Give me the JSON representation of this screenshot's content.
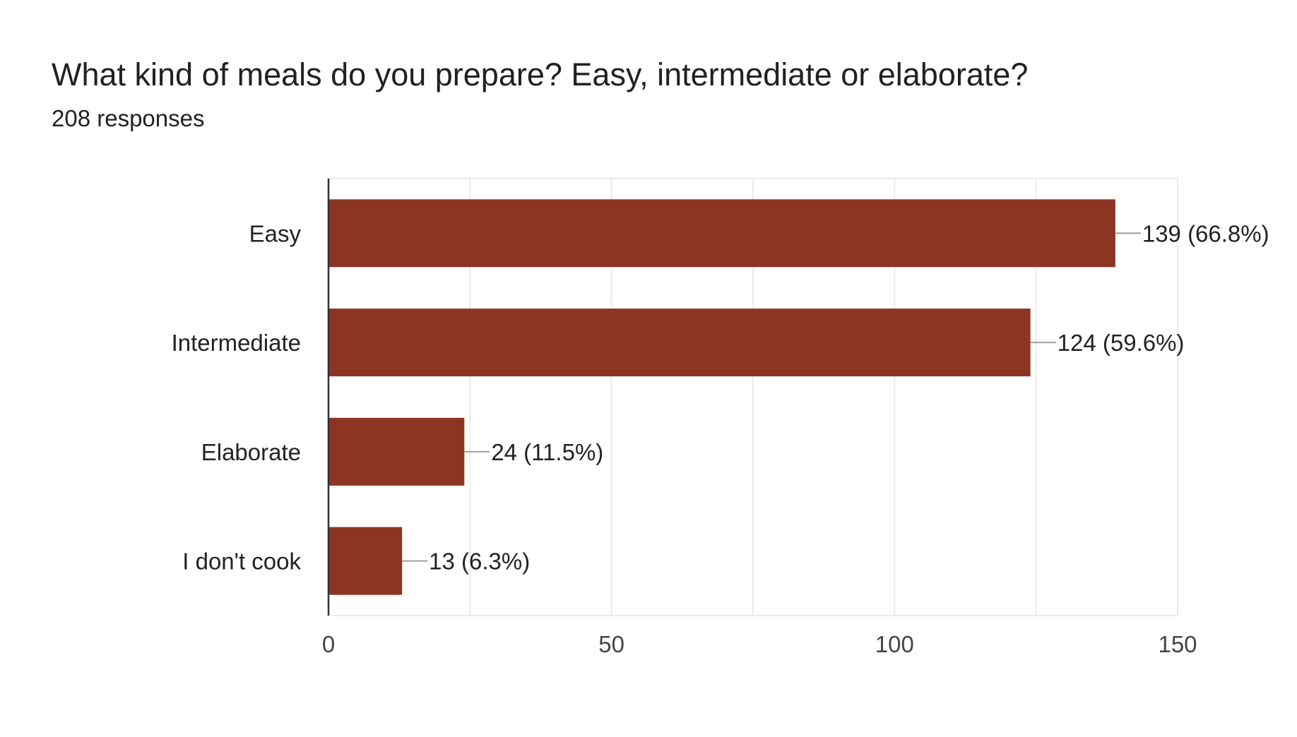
{
  "title": "What kind of meals do you prepare? Easy, intermediate or elaborate?",
  "subtitle": "208 responses",
  "colors": {
    "bar": "#8b3522",
    "grid": "#ebebeb",
    "axis": "#333333",
    "leader": "#9e9e9e",
    "text": "#222222"
  },
  "chart_data": {
    "type": "bar",
    "orientation": "horizontal",
    "categories": [
      "Easy",
      "Intermediate",
      "Elaborate",
      "I don't cook"
    ],
    "values": [
      139,
      124,
      24,
      13
    ],
    "data_labels": [
      "139 (66.8%)",
      "124 (59.6%)",
      "24 (11.5%)",
      "13 (6.3%)"
    ],
    "xlim": [
      0,
      150
    ],
    "xticks": [
      0,
      50,
      100,
      150
    ],
    "grid": true,
    "legend": "none"
  }
}
